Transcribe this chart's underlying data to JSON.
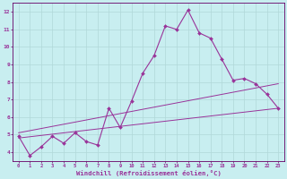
{
  "xlabel": "Windchill (Refroidissement éolien,°C)",
  "background_color": "#c8eef0",
  "grid_color": "#b0d8d8",
  "line_color": "#993399",
  "spine_color": "#660066",
  "xlim": [
    -0.5,
    23.5
  ],
  "ylim": [
    3.5,
    12.5
  ],
  "yticks": [
    4,
    5,
    6,
    7,
    8,
    9,
    10,
    11,
    12
  ],
  "xticks": [
    0,
    1,
    2,
    3,
    4,
    5,
    6,
    7,
    8,
    9,
    10,
    11,
    12,
    13,
    14,
    15,
    16,
    17,
    18,
    19,
    20,
    21,
    22,
    23
  ],
  "line1_x": [
    0,
    1,
    2,
    3,
    4,
    5,
    6,
    7,
    8,
    9,
    10,
    11,
    12,
    13,
    14,
    15,
    16,
    17,
    18,
    19,
    20,
    21,
    22,
    23
  ],
  "line1_y": [
    4.9,
    3.8,
    4.3,
    4.9,
    4.5,
    5.1,
    4.6,
    4.4,
    6.5,
    5.4,
    6.9,
    8.5,
    9.5,
    11.2,
    11.0,
    12.1,
    10.8,
    10.5,
    9.3,
    8.1,
    8.2,
    7.9,
    7.3,
    6.5
  ],
  "trend1_x": [
    0,
    23
  ],
  "trend1_y": [
    4.8,
    6.5
  ],
  "trend2_x": [
    0,
    23
  ],
  "trend2_y": [
    5.1,
    7.9
  ]
}
